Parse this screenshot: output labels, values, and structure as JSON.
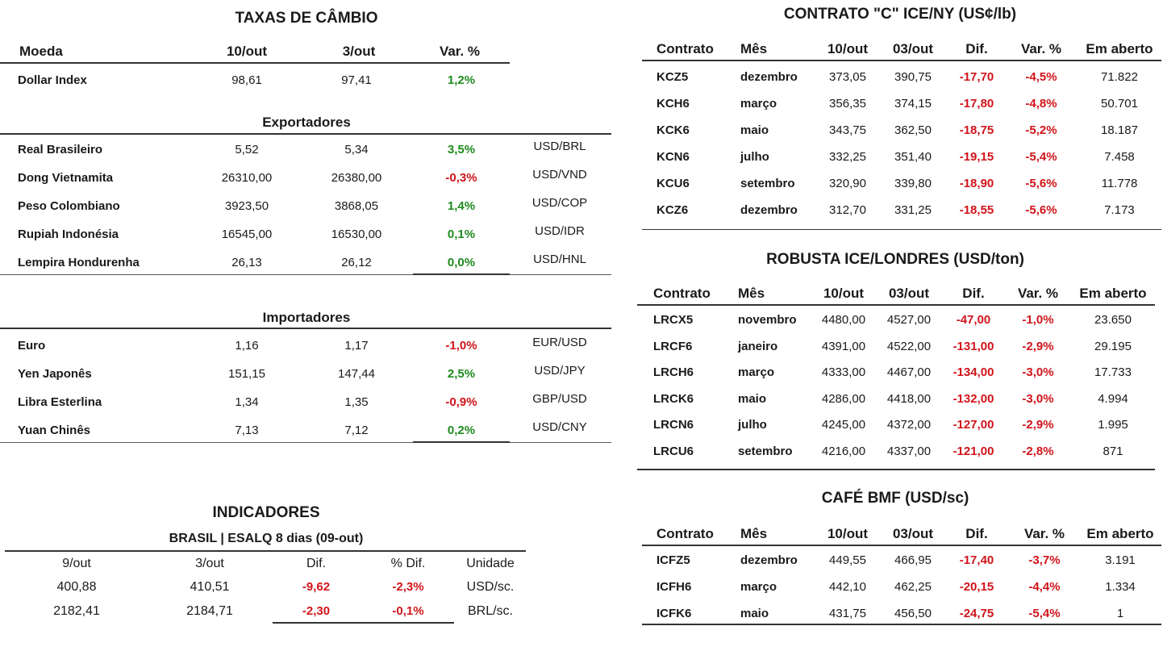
{
  "fx": {
    "title": "TAXAS DE CÂMBIO",
    "headers": [
      "Moeda",
      "10/out",
      "3/out",
      "Var. %"
    ],
    "dollar_index": {
      "name": "Dollar Index",
      "a": "98,61",
      "b": "97,41",
      "var": "1,2%",
      "sign": "pos"
    },
    "exporters_title": "Exportadores",
    "exporters": [
      {
        "name": "Real Brasileiro",
        "a": "5,52",
        "b": "5,34",
        "var": "3,5%",
        "sign": "pos",
        "pair": "USD/BRL"
      },
      {
        "name": "Dong Vietnamita",
        "a": "26310,00",
        "b": "26380,00",
        "var": "-0,3%",
        "sign": "neg",
        "pair": "USD/VND"
      },
      {
        "name": "Peso Colombiano",
        "a": "3923,50",
        "b": "3868,05",
        "var": "1,4%",
        "sign": "pos",
        "pair": "USD/COP"
      },
      {
        "name": "Rupiah Indonésia",
        "a": "16545,00",
        "b": "16530,00",
        "var": "0,1%",
        "sign": "pos",
        "pair": "USD/IDR"
      },
      {
        "name": "Lempira Hondurenha",
        "a": "26,13",
        "b": "26,12",
        "var": "0,0%",
        "sign": "pos",
        "pair": "USD/HNL"
      }
    ],
    "importers_title": "Importadores",
    "importers": [
      {
        "name": "Euro",
        "a": "1,16",
        "b": "1,17",
        "var": "-1,0%",
        "sign": "neg",
        "pair": "EUR/USD"
      },
      {
        "name": "Yen Japonês",
        "a": "151,15",
        "b": "147,44",
        "var": "2,5%",
        "sign": "pos",
        "pair": "USD/JPY"
      },
      {
        "name": "Libra Esterlina",
        "a": "1,34",
        "b": "1,35",
        "var": "-0,9%",
        "sign": "neg",
        "pair": "GBP/USD"
      },
      {
        "name": "Yuan Chinês",
        "a": "7,13",
        "b": "7,12",
        "var": "0,2%",
        "sign": "pos",
        "pair": "USD/CNY"
      }
    ]
  },
  "indicators": {
    "title": "INDICADORES",
    "subtitle": "BRASIL | ESALQ 8 dias (09-out)",
    "headers": [
      "9/out",
      "3/out",
      "Dif.",
      "% Dif.",
      "Unidade"
    ],
    "rows": [
      {
        "a": "400,88",
        "b": "410,51",
        "dif": "-9,62",
        "pct": "-2,3%",
        "unit": "USD/sc."
      },
      {
        "a": "2182,41",
        "b": "2184,71",
        "dif": "-2,30",
        "pct": "-0,1%",
        "unit": "BRL/sc."
      }
    ]
  },
  "ny": {
    "title": "CONTRATO \"C\" ICE/NY (US¢/lb)",
    "headers": [
      "Contrato",
      "Mês",
      "10/out",
      "03/out",
      "Dif.",
      "Var. %",
      "Em aberto"
    ],
    "rows": [
      [
        "KCZ5",
        "dezembro",
        "373,05",
        "390,75",
        "-17,70",
        "-4,5%",
        "71.822"
      ],
      [
        "KCH6",
        "março",
        "356,35",
        "374,15",
        "-17,80",
        "-4,8%",
        "50.701"
      ],
      [
        "KCK6",
        "maio",
        "343,75",
        "362,50",
        "-18,75",
        "-5,2%",
        "18.187"
      ],
      [
        "KCN6",
        "julho",
        "332,25",
        "351,40",
        "-19,15",
        "-5,4%",
        "7.458"
      ],
      [
        "KCU6",
        "setembro",
        "320,90",
        "339,80",
        "-18,90",
        "-5,6%",
        "11.778"
      ],
      [
        "KCZ6",
        "dezembro",
        "312,70",
        "331,25",
        "-18,55",
        "-5,6%",
        "7.173"
      ]
    ]
  },
  "london": {
    "title": "ROBUSTA ICE/LONDRES (USD/ton)",
    "headers": [
      "Contrato",
      "Mês",
      "10/out",
      "03/out",
      "Dif.",
      "Var. %",
      "Em aberto"
    ],
    "rows": [
      [
        "LRCX5",
        "novembro",
        "4480,00",
        "4527,00",
        "-47,00",
        "-1,0%",
        "23.650"
      ],
      [
        "LRCF6",
        "janeiro",
        "4391,00",
        "4522,00",
        "-131,00",
        "-2,9%",
        "29.195"
      ],
      [
        "LRCH6",
        "março",
        "4333,00",
        "4467,00",
        "-134,00",
        "-3,0%",
        "17.733"
      ],
      [
        "LRCK6",
        "maio",
        "4286,00",
        "4418,00",
        "-132,00",
        "-3,0%",
        "4.994"
      ],
      [
        "LRCN6",
        "julho",
        "4245,00",
        "4372,00",
        "-127,00",
        "-2,9%",
        "1.995"
      ],
      [
        "LRCU6",
        "setembro",
        "4216,00",
        "4337,00",
        "-121,00",
        "-2,8%",
        "871"
      ]
    ]
  },
  "bmf": {
    "title": "CAFÉ BMF (USD/sc)",
    "headers": [
      "Contrato",
      "Mês",
      "10/out",
      "03/out",
      "Dif.",
      "Var. %",
      "Em aberto"
    ],
    "rows": [
      [
        "ICFZ5",
        "dezembro",
        "449,55",
        "466,95",
        "-17,40",
        "-3,7%",
        "3.191"
      ],
      [
        "ICFH6",
        "março",
        "442,10",
        "462,25",
        "-20,15",
        "-4,4%",
        "1.334"
      ],
      [
        "ICFK6",
        "maio",
        "431,75",
        "456,50",
        "-24,75",
        "-5,4%",
        "1"
      ]
    ]
  }
}
